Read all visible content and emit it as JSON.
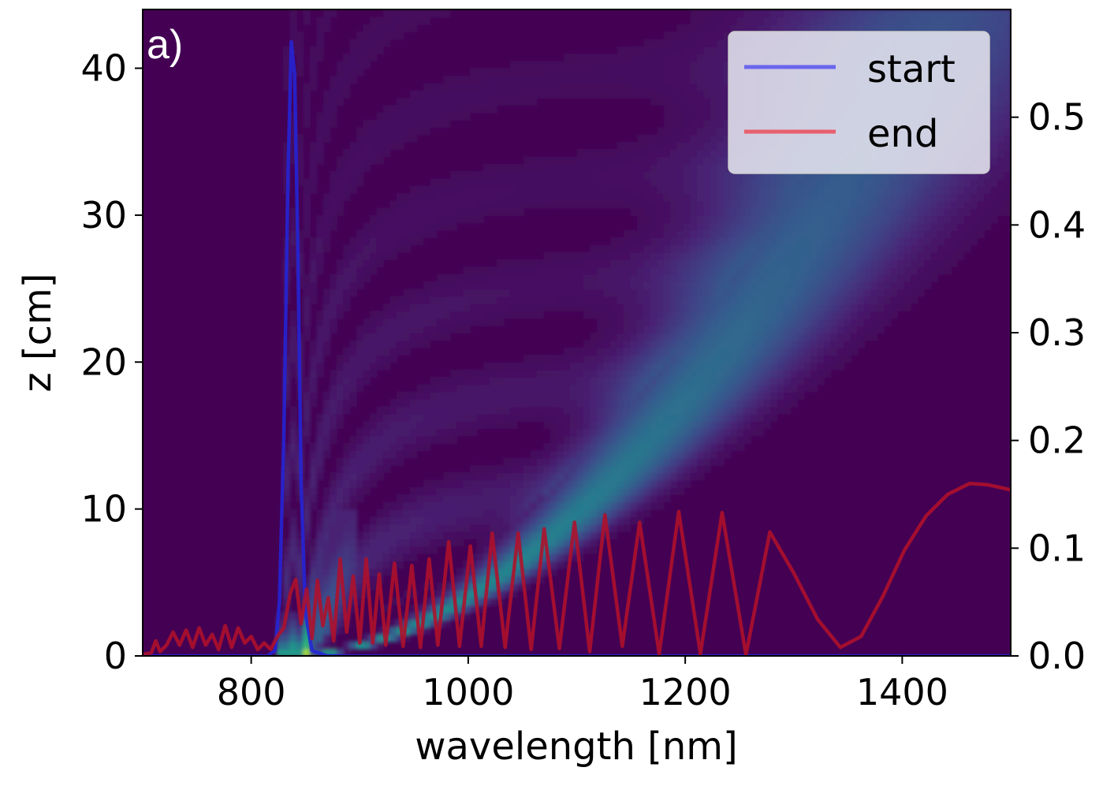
{
  "chart_data": {
    "type": "heatmap",
    "panel_label": "a)",
    "xlabel": "wavelength [nm]",
    "ylabel": "z [cm]",
    "y2label": "",
    "xlim": [
      700,
      1500
    ],
    "ylim": [
      0,
      44
    ],
    "y2lim": [
      0,
      0.6
    ],
    "xticks": [
      800,
      1000,
      1200,
      1400
    ],
    "xtick_labels": [
      "800",
      "1000",
      "1200",
      "1400"
    ],
    "yticks": [
      0,
      10,
      20,
      30,
      40
    ],
    "ytick_labels": [
      "0",
      "10",
      "20",
      "30",
      "40"
    ],
    "y2ticks": [
      0.0,
      0.1,
      0.2,
      0.3,
      0.4,
      0.5
    ],
    "y2tick_labels": [
      "0.0",
      "0.1",
      "0.2",
      "0.3",
      "0.4",
      "0.5"
    ],
    "colormap": "viridis",
    "background_color": "#440154",
    "legend": {
      "position": "top-right",
      "entries": [
        {
          "label": "start",
          "color": "#6b66ee"
        },
        {
          "label": "end",
          "color": "#e8606e"
        }
      ]
    },
    "series": [
      {
        "name": "start",
        "axis": "right",
        "color": "#2424d6",
        "x": [
          700,
          800,
          815,
          822,
          826,
          830,
          834,
          837,
          840,
          843,
          846,
          850,
          856,
          870,
          1500
        ],
        "y": [
          0.0,
          0.0,
          0.0,
          0.005,
          0.05,
          0.2,
          0.45,
          0.57,
          0.54,
          0.38,
          0.16,
          0.04,
          0.005,
          0.0,
          0.0
        ]
      },
      {
        "name": "end",
        "axis": "right",
        "color": "#b0102a",
        "x": [
          700,
          708,
          712,
          716,
          722,
          728,
          734,
          740,
          746,
          752,
          758,
          764,
          770,
          776,
          782,
          788,
          794,
          800,
          806,
          812,
          818,
          824,
          830,
          836,
          841,
          846,
          851,
          856,
          861,
          866,
          871,
          876,
          882,
          888,
          894,
          900,
          906,
          912,
          918,
          924,
          932,
          940,
          948,
          956,
          964,
          972,
          982,
          992,
          1002,
          1012,
          1022,
          1034,
          1046,
          1058,
          1070,
          1084,
          1098,
          1112,
          1126,
          1142,
          1158,
          1176,
          1194,
          1214,
          1234,
          1256,
          1278,
          1300,
          1322,
          1343,
          1362,
          1382,
          1402,
          1422,
          1442,
          1462,
          1478,
          1492,
          1500
        ],
        "y": [
          0.001,
          0.003,
          0.014,
          0.004,
          0.01,
          0.022,
          0.01,
          0.024,
          0.008,
          0.026,
          0.01,
          0.02,
          0.006,
          0.028,
          0.008,
          0.026,
          0.012,
          0.018,
          0.006,
          0.012,
          0.006,
          0.018,
          0.026,
          0.058,
          0.071,
          0.03,
          0.062,
          0.016,
          0.07,
          0.028,
          0.054,
          0.014,
          0.09,
          0.022,
          0.074,
          0.012,
          0.09,
          0.012,
          0.076,
          0.01,
          0.086,
          0.009,
          0.084,
          0.008,
          0.09,
          0.01,
          0.106,
          0.009,
          0.102,
          0.009,
          0.114,
          0.008,
          0.114,
          0.006,
          0.118,
          0.007,
          0.124,
          0.004,
          0.131,
          0.009,
          0.124,
          0.002,
          0.134,
          0.002,
          0.133,
          0.001,
          0.115,
          0.077,
          0.034,
          0.008,
          0.018,
          0.055,
          0.098,
          0.13,
          0.15,
          0.16,
          0.159,
          0.156,
          0.154
        ]
      }
    ]
  }
}
